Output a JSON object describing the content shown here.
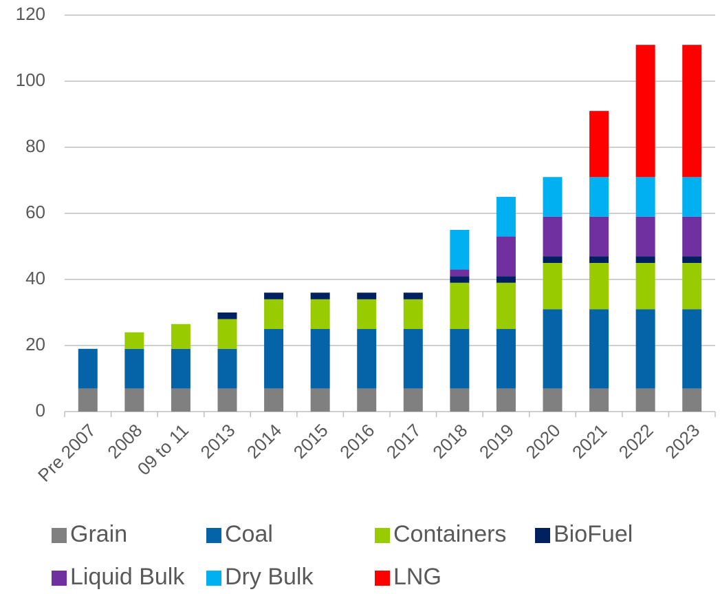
{
  "chart_data": {
    "type": "stacked_bar",
    "categories": [
      "Pre 2007",
      "2008",
      "09 to 11",
      "2013",
      "2014",
      "2015",
      "2016",
      "2017",
      "2018",
      "2019",
      "2020",
      "2021",
      "2022",
      "2023"
    ],
    "series": [
      {
        "name": "Grain",
        "color": "#808080",
        "values": [
          7,
          7,
          7,
          7,
          7,
          7,
          7,
          7,
          7,
          7,
          7,
          7,
          7,
          7
        ]
      },
      {
        "name": "Coal",
        "color": "#0563a8",
        "values": [
          12,
          12,
          12,
          12,
          18,
          18,
          18,
          18,
          18,
          18,
          24,
          24,
          24,
          24
        ]
      },
      {
        "name": "Containers",
        "color": "#99cc00",
        "values": [
          null,
          5,
          7.5,
          9,
          9,
          9,
          9,
          9,
          14,
          14,
          14,
          14,
          14,
          14
        ]
      },
      {
        "name": "BioFuel",
        "color": "#002060",
        "values": [
          null,
          null,
          null,
          2,
          2,
          2,
          2,
          2,
          2,
          2,
          2,
          2,
          2,
          2
        ]
      },
      {
        "name": "Liquid Bulk",
        "color": "#7030a0",
        "values": [
          null,
          null,
          null,
          null,
          null,
          null,
          null,
          null,
          2,
          12,
          12,
          12,
          12,
          12
        ]
      },
      {
        "name": "Dry Bulk",
        "color": "#00b0f0",
        "values": [
          null,
          null,
          null,
          null,
          null,
          null,
          null,
          null,
          12,
          12,
          12,
          12,
          12,
          12
        ]
      },
      {
        "name": "LNG",
        "color": "#ff0000",
        "values": [
          null,
          null,
          null,
          null,
          null,
          null,
          null,
          null,
          null,
          null,
          null,
          20,
          40,
          40
        ]
      }
    ],
    "ylim": [
      0,
      120
    ],
    "yticks": [
      0,
      20,
      40,
      60,
      80,
      100,
      120
    ],
    "grid": true
  }
}
